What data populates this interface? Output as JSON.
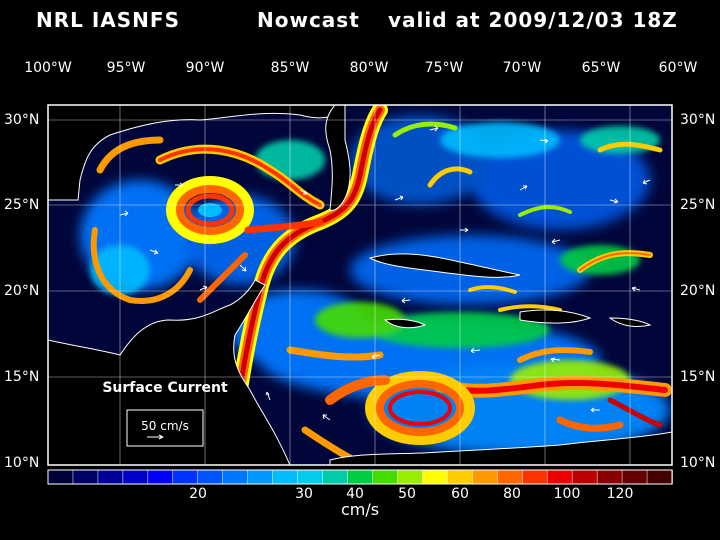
{
  "header": {
    "model": "NRL IASNFS",
    "product": "Nowcast",
    "valid": "valid at 2009/12/03 18Z"
  },
  "map": {
    "lon_labels": [
      "100°W",
      "95°W",
      "90°W",
      "85°W",
      "80°W",
      "75°W",
      "70°W",
      "65°W",
      "60°W"
    ],
    "lat_labels": [
      "30°N",
      "25°N",
      "20°N",
      "15°N",
      "10°N"
    ],
    "field_label": "Surface Current",
    "reference_vector": "50 cm/s"
  },
  "colorbar": {
    "units": "cm/s",
    "tick_labels": [
      "20",
      "30",
      "40",
      "50",
      "60",
      "80",
      "100",
      "120"
    ],
    "colors": [
      "#00003a",
      "#000066",
      "#000099",
      "#0000cc",
      "#0000ff",
      "#0033ff",
      "#0055ff",
      "#0077ff",
      "#0099ff",
      "#00bbff",
      "#00ccee",
      "#00ccaa",
      "#00cc44",
      "#44dd00",
      "#99ee00",
      "#ffff00",
      "#ffcc00",
      "#ff9900",
      "#ff6600",
      "#ff3300",
      "#ee0000",
      "#bb0000",
      "#880000",
      "#660000",
      "#440000"
    ]
  }
}
